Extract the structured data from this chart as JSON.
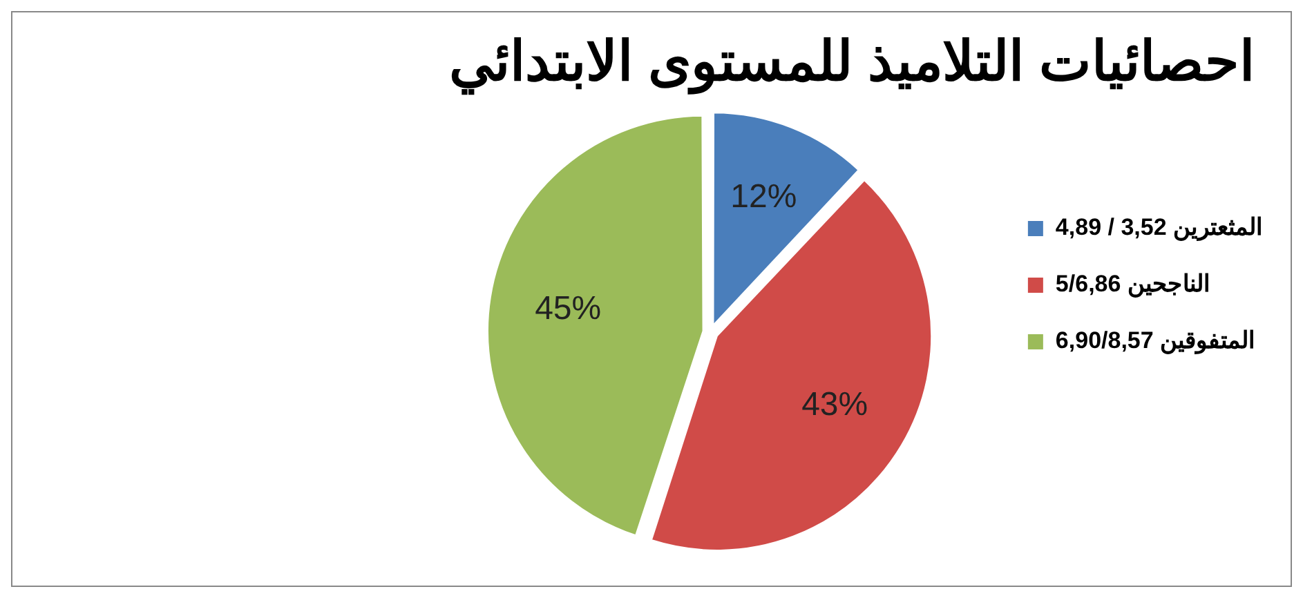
{
  "chart_data": {
    "type": "pie",
    "title": "احصائيات التلاميذ للمستوى الابتدائي",
    "categories": [
      "المثعترين 3,52 / 4,89",
      "الناجحين 5/6,86",
      "المتفوقين 6,90/8,57"
    ],
    "values": [
      12,
      43,
      45
    ],
    "colors": [
      "#4a7ebb",
      "#d04b48",
      "#9bbb59"
    ],
    "value_labels": [
      "12%",
      "43%",
      "45%"
    ],
    "legend": "right"
  }
}
